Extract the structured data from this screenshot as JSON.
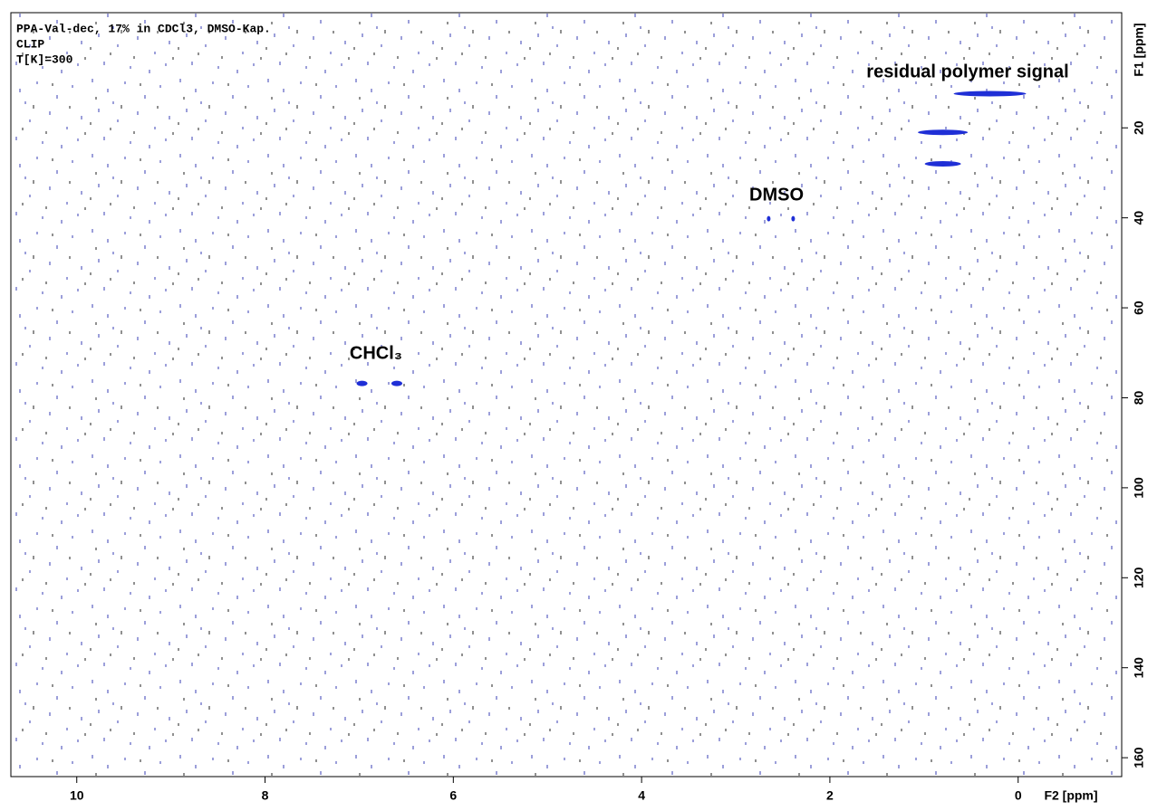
{
  "chart_data": {
    "type": "nmr2d",
    "header": [
      "PPA-Val-dec, 17% in CDCl3, DMSO-Kap.",
      "CLIP",
      "T[K]=300"
    ],
    "xlabel": "F2 [ppm]",
    "ylabel": "F1 [ppm]",
    "xlim": [
      10.7,
      -1.1
    ],
    "xticks": [
      10,
      8,
      6,
      4,
      2,
      0
    ],
    "ylim": [
      -5.6,
      164.2
    ],
    "yticks": [
      20,
      40,
      60,
      80,
      100,
      120,
      140,
      160
    ],
    "color": "#1f2fd6",
    "series": [
      {
        "name": "peaks",
        "x": [
          6.97,
          6.6,
          2.65,
          2.39,
          0.3,
          0.8,
          0.8
        ],
        "values": [
          76.8,
          76.8,
          40.2,
          40.2,
          12.4,
          21,
          28
        ]
      }
    ],
    "annotations": [
      "residual polymer signal",
      "DMSO",
      "CHCl₃"
    ]
  }
}
